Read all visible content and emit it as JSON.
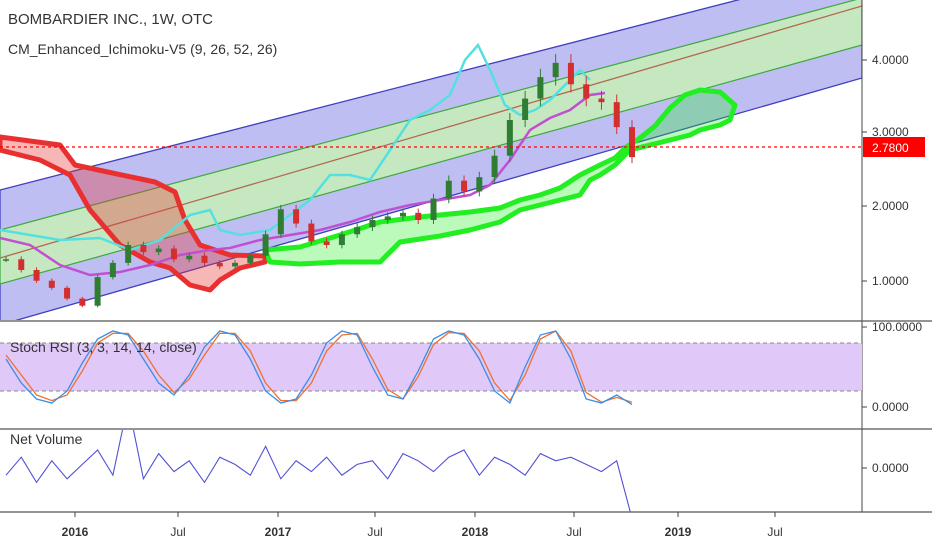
{
  "header": {
    "title": "BOMBARDIER INC., 1W, OTC",
    "indicator": "CM_Enhanced_Ichimoku-V5 (9, 26, 52, 26)"
  },
  "panes": {
    "stoch_label": "Stoch RSI (3, 3, 14, 14, close)",
    "netvol_label": "Net Volume"
  },
  "price_axis": {
    "ticks": [
      "4.0000",
      "3.0000",
      "2.0000",
      "1.0000"
    ],
    "last_price": "2.7800",
    "last_price_color": "#ff0000"
  },
  "stoch_axis": {
    "ticks": [
      "100.0000",
      "0.0000"
    ]
  },
  "netvol_axis": {
    "ticks": [
      "0.0000"
    ]
  },
  "x_axis": {
    "labels": [
      "2016",
      "Jul",
      "2017",
      "Jul",
      "2018",
      "Jul",
      "2019",
      "Jul"
    ]
  },
  "colors": {
    "channel_fill": "#b3b3f0",
    "channel_line": "#3f3fc0",
    "inner_fill": "#c8f0b8",
    "inner_line": "#3caa3c",
    "mid_line": "#b06a50",
    "cloud_bear": "#e83030",
    "cloud_bull": "#22ee22",
    "tenkan": "#55e0e0",
    "kijun": "#c050d0",
    "candle_up": "#2f7d32",
    "candle_down": "#d32f2f",
    "stoch_k": "#3a8ee6",
    "stoch_d": "#f07030",
    "stoch_band": "#e0c8f8",
    "netvol": "#5050d8"
  },
  "chart_data": {
    "type": "line",
    "price": {
      "ylim": [
        0.5,
        4.7
      ],
      "last": 2.78,
      "dates": [
        "2015-09-21",
        "2015-10-19",
        "2015-11-16",
        "2015-12-14",
        "2016-01-11",
        "2016-02-08",
        "2016-03-07",
        "2016-04-04",
        "2016-05-02",
        "2016-05-30",
        "2016-06-27",
        "2016-07-25",
        "2016-08-22",
        "2016-09-19",
        "2016-10-17",
        "2016-11-14",
        "2016-12-12",
        "2017-01-09",
        "2017-02-06",
        "2017-03-06",
        "2017-04-03",
        "2017-05-01",
        "2017-05-29",
        "2017-06-26",
        "2017-07-24",
        "2017-08-21",
        "2017-09-18",
        "2017-10-16",
        "2017-11-13",
        "2017-12-11",
        "2018-01-08",
        "2018-02-05",
        "2018-03-05",
        "2018-04-02",
        "2018-04-30",
        "2018-05-28",
        "2018-06-25",
        "2018-07-23",
        "2018-08-20",
        "2018-09-17",
        "2018-10-15",
        "2018-10-29"
      ],
      "close": [
        1.35,
        1.2,
        1.05,
        0.95,
        0.8,
        0.7,
        1.1,
        1.3,
        1.55,
        1.45,
        1.5,
        1.35,
        1.4,
        1.3,
        1.25,
        1.3,
        1.4,
        1.7,
        2.05,
        1.85,
        1.6,
        1.55,
        1.7,
        1.8,
        1.9,
        1.95,
        2.0,
        1.9,
        2.2,
        2.45,
        2.3,
        2.5,
        2.8,
        3.3,
        3.6,
        3.9,
        4.1,
        3.8,
        3.6,
        3.55,
        3.2,
        2.78
      ]
    },
    "stoch_rsi": {
      "ylim": [
        0,
        100
      ],
      "bands": [
        80,
        20
      ],
      "k": [
        60,
        30,
        10,
        5,
        20,
        55,
        85,
        95,
        90,
        60,
        30,
        15,
        40,
        75,
        95,
        90,
        60,
        20,
        5,
        10,
        40,
        80,
        95,
        90,
        50,
        15,
        10,
        45,
        85,
        95,
        90,
        60,
        20,
        5,
        50,
        90,
        95,
        60,
        10,
        5,
        15,
        3
      ],
      "d": [
        65,
        40,
        15,
        8,
        15,
        45,
        80,
        92,
        92,
        70,
        40,
        18,
        35,
        65,
        92,
        92,
        70,
        30,
        8,
        8,
        30,
        70,
        90,
        92,
        60,
        22,
        10,
        38,
        78,
        93,
        92,
        70,
        30,
        8,
        40,
        85,
        95,
        70,
        18,
        6,
        12,
        6
      ]
    },
    "net_volume": {
      "ylim": [
        -1,
        1
      ],
      "values": [
        -0.2,
        0.3,
        -0.4,
        0.2,
        -0.3,
        0.1,
        0.5,
        -0.2,
        1.8,
        -0.3,
        0.4,
        -0.1,
        0.2,
        -0.4,
        0.3,
        0.1,
        -0.2,
        0.6,
        -0.3,
        0.2,
        -0.1,
        0.3,
        -0.2,
        0.1,
        0.2,
        -0.3,
        0.4,
        0.2,
        -0.1,
        0.3,
        0.5,
        -0.2,
        0.3,
        0.1,
        -0.2,
        0.4,
        0.2,
        0.3,
        0.1,
        -0.1,
        0.2,
        -1.4
      ]
    },
    "x_axis_labels": [
      "2016",
      "Jul",
      "2017",
      "Jul",
      "2018",
      "Jul",
      "2019",
      "Jul"
    ]
  }
}
